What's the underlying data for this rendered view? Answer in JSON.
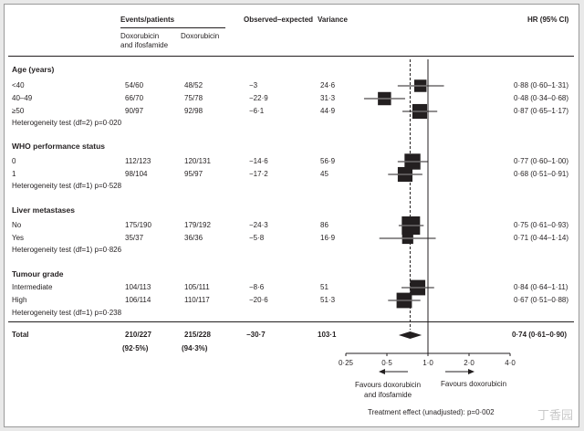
{
  "headers": {
    "events": "Events/patients",
    "arm1": "Doxorubicin\nand ifosfamide",
    "arm2": "Doxorubicin",
    "oe": "Observed–expected",
    "variance": "Variance",
    "hr": "HR (95% CI)"
  },
  "sections": [
    {
      "title": "Age (years)",
      "rows": [
        {
          "label": "<40",
          "e1": "54/60",
          "e2": "48/52",
          "oe": "−3",
          "var": "24·6",
          "hr_text": "0·88 (0·60–1·31)"
        },
        {
          "label": "40–49",
          "e1": "66/70",
          "e2": "75/78",
          "oe": "−22·9",
          "var": "31·3",
          "hr_text": "0·48 (0·34–0·68)"
        },
        {
          "label": "≥50",
          "e1": "90/97",
          "e2": "92/98",
          "oe": "−6·1",
          "var": "44·9",
          "hr_text": "0·87 (0·65–1·17)"
        }
      ],
      "heterogeneity": "Heterogeneity test (df=2) p=0·020"
    },
    {
      "title": "WHO performance status",
      "rows": [
        {
          "label": "0",
          "e1": "112/123",
          "e2": "120/131",
          "oe": "−14·6",
          "var": "56·9",
          "hr_text": "0·77 (0·60–1·00)"
        },
        {
          "label": "1",
          "e1": "98/104",
          "e2": "95/97",
          "oe": "−17·2",
          "var": "45",
          "hr_text": "0·68 (0·51–0·91)"
        }
      ],
      "heterogeneity": "Heterogeneity test (df=1) p=0·528"
    },
    {
      "title": "Liver metastases",
      "rows": [
        {
          "label": "No",
          "e1": "175/190",
          "e2": "179/192",
          "oe": "−24·3",
          "var": "86",
          "hr_text": "0·75 (0·61–0·93)"
        },
        {
          "label": "Yes",
          "e1": "35/37",
          "e2": "36/36",
          "oe": "−5·8",
          "var": "16·9",
          "hr_text": "0·71 (0·44–1·14)"
        }
      ],
      "heterogeneity": "Heterogeneity test (df=1) p=0·826"
    },
    {
      "title": "Tumour grade",
      "rows": [
        {
          "label": "Intermediate",
          "e1": "104/113",
          "e2": "105/111",
          "oe": "−8·6",
          "var": "51",
          "hr_text": "0·84 (0·64–1·11)"
        },
        {
          "label": "High",
          "e1": "106/114",
          "e2": "110/117",
          "oe": "−20·6",
          "var": "51·3",
          "hr_text": "0·67 (0·51–0·88)"
        }
      ],
      "heterogeneity": "Heterogeneity test (df=1) p=0·238"
    }
  ],
  "total": {
    "label": "Total",
    "e1": "210/227",
    "e2": "215/228",
    "oe": "−30·7",
    "var": "103·1",
    "hr_text": "0·74 (0·61–0·90)",
    "pct1": "(92·5%)",
    "pct2": "(94·3%)"
  },
  "axis_ticks": [
    "0·25",
    "0·5",
    "1·0",
    "2·0",
    "4·0"
  ],
  "favours_left": "Favours doxorubicin\nand ifosfamide",
  "favours_right": "Favours doxorubicin",
  "treatment_effect": "Treatment effect (unadjusted): p=0·002",
  "watermark": "丁香园",
  "chart_data": {
    "type": "forest",
    "x_scale": "log",
    "xlim": [
      0.25,
      4.0
    ],
    "reference_line": 1.0,
    "overall_dashed_line": 0.74,
    "series": [
      {
        "label": "<40",
        "hr": 0.88,
        "lo": 0.6,
        "hi": 1.31,
        "weight": 24.6
      },
      {
        "label": "40–49",
        "hr": 0.48,
        "lo": 0.34,
        "hi": 0.68,
        "weight": 31.3
      },
      {
        "label": "≥50",
        "hr": 0.87,
        "lo": 0.65,
        "hi": 1.17,
        "weight": 44.9
      },
      {
        "label": "0",
        "hr": 0.77,
        "lo": 0.6,
        "hi": 1.0,
        "weight": 56.9
      },
      {
        "label": "1",
        "hr": 0.68,
        "lo": 0.51,
        "hi": 0.91,
        "weight": 45
      },
      {
        "label": "No",
        "hr": 0.75,
        "lo": 0.61,
        "hi": 0.93,
        "weight": 86
      },
      {
        "label": "Yes",
        "hr": 0.71,
        "lo": 0.44,
        "hi": 1.14,
        "weight": 16.9
      },
      {
        "label": "Intermediate",
        "hr": 0.84,
        "lo": 0.64,
        "hi": 1.11,
        "weight": 51
      },
      {
        "label": "High",
        "hr": 0.67,
        "lo": 0.51,
        "hi": 0.88,
        "weight": 51.3
      }
    ],
    "overall": {
      "label": "Total",
      "hr": 0.74,
      "lo": 0.61,
      "hi": 0.9
    }
  }
}
